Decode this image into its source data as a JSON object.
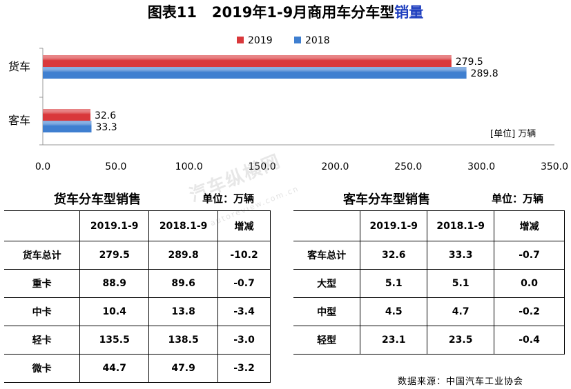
{
  "page": {
    "title_prefix": "图表11",
    "title_main": "2019年1-9月商用车分车型",
    "title_highlight": "销量",
    "unit_note": "[单位] 万辆",
    "source": "数据来源：中国汽车工业协会",
    "watermark": "汽车纵横网",
    "watermark_url": "autoreview.com.cn"
  },
  "colors": {
    "s2019": "#d9383b",
    "s2018": "#3f7fd0"
  },
  "chart_data": {
    "type": "bar",
    "orientation": "horizontal",
    "categories": [
      "货车",
      "客车"
    ],
    "series": [
      {
        "name": "2019",
        "values": [
          279.5,
          32.6
        ]
      },
      {
        "name": "2018",
        "values": [
          289.8,
          33.3
        ]
      }
    ],
    "xlim": [
      0,
      350
    ],
    "xticks": [
      "0.0",
      "50.0",
      "100.0",
      "150.0",
      "200.0",
      "250.0",
      "300.0",
      "350.0"
    ],
    "data_labels": [
      [
        "279.5",
        "32.6"
      ],
      [
        "289.8",
        "33.3"
      ]
    ],
    "legend_position": "top"
  },
  "truck_table": {
    "title": "货车分车型销售",
    "unit": "单位：万辆",
    "headers": [
      "",
      "2019.1-9",
      "2018.1-9",
      "增减"
    ],
    "rows": [
      [
        "货车总计",
        "279.5",
        "289.8",
        "-10.2"
      ],
      [
        "重卡",
        "88.9",
        "89.6",
        "-0.7"
      ],
      [
        "中卡",
        "10.4",
        "13.8",
        "-3.4"
      ],
      [
        "轻卡",
        "135.5",
        "138.5",
        "-3.0"
      ],
      [
        "微卡",
        "44.7",
        "47.9",
        "-3.2"
      ]
    ]
  },
  "bus_table": {
    "title": "客车分车型销售",
    "unit": "单位：万辆",
    "headers": [
      "",
      "2019.1-9",
      "2018.1-9",
      "增减"
    ],
    "rows": [
      [
        "客车总计",
        "32.6",
        "33.3",
        "-0.7"
      ],
      [
        "大型",
        "5.1",
        "5.1",
        "0.0"
      ],
      [
        "中型",
        "4.5",
        "4.7",
        "-0.2"
      ],
      [
        "轻型",
        "23.1",
        "23.5",
        "-0.4"
      ]
    ]
  }
}
